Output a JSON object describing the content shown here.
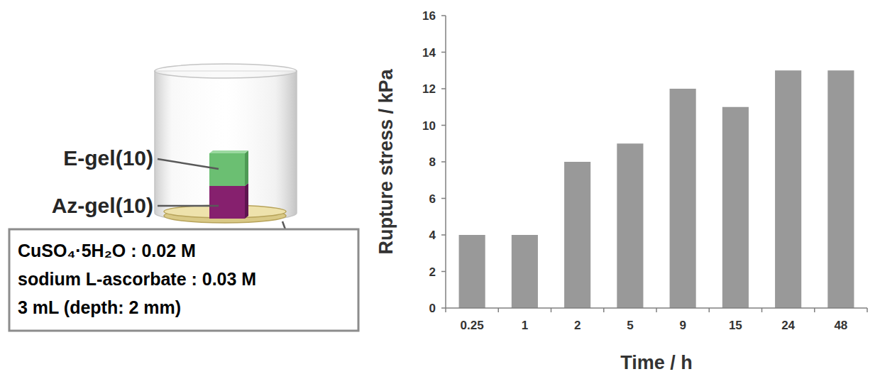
{
  "chart_data": {
    "type": "bar",
    "categories": [
      "0.25",
      "1",
      "2",
      "5",
      "9",
      "15",
      "24",
      "48"
    ],
    "values": [
      4,
      4,
      8,
      9,
      12,
      11,
      13,
      13
    ],
    "color": "#999999",
    "xlabel": "Time / h",
    "ylabel": "Rupture stress / kPa",
    "ylim": [
      0,
      16
    ],
    "yticks": [
      0,
      2,
      4,
      6,
      8,
      10,
      12,
      14,
      16
    ]
  },
  "diagram": {
    "gel_labels": [
      "E-gel(10)",
      "Az-gel(10)"
    ],
    "solution_lines": [
      "CuSO₄·5H₂O : 0.02 M",
      "sodium L-ascorbate : 0.03 M",
      "3 mL (depth: 2 mm)"
    ]
  }
}
